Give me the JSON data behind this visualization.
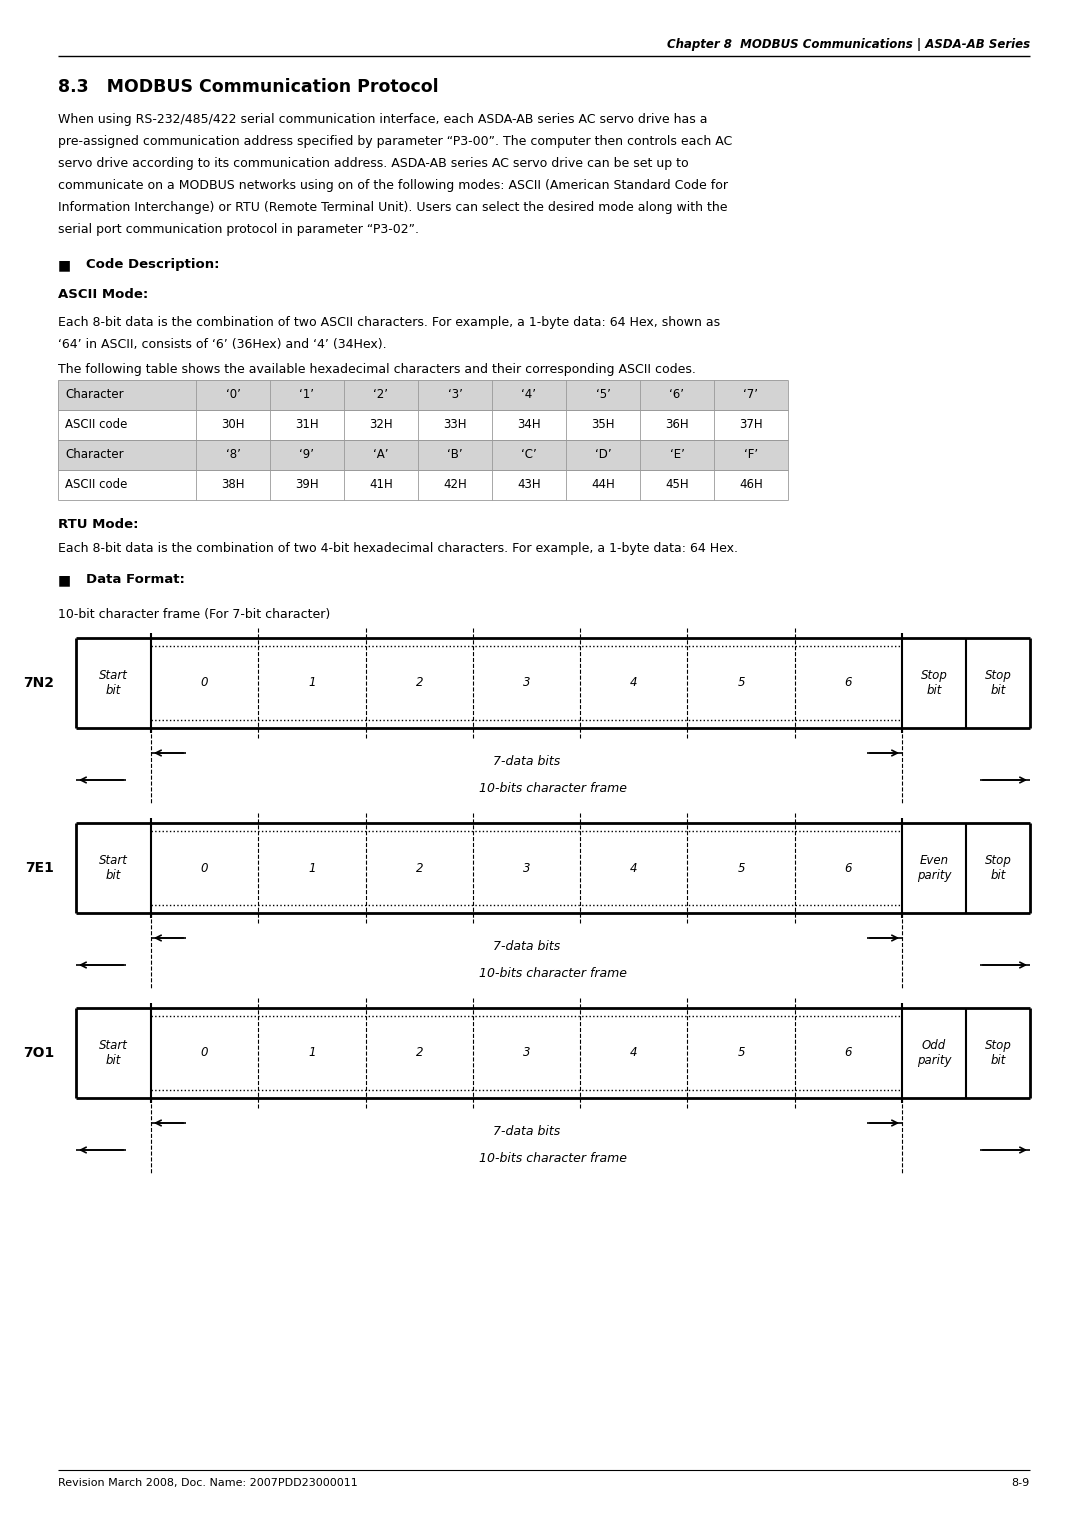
{
  "page_title": "Chapter 8  MODBUS Communications | ASDA-AB Series",
  "section_title": "8.3   MODBUS Communication Protocol",
  "intro_lines": [
    "When using RS-232/485/422 serial communication interface, each ASDA-AB series AC servo drive has a",
    "pre-assigned communication address specified by parameter “P3-00”. The computer then controls each AC",
    "servo drive according to its communication address. ASDA-AB series AC servo drive can be set up to",
    "communicate on a MODBUS networks using on of the following modes: ASCII (American Standard Code for",
    "Information Interchange) or RTU (Remote Terminal Unit). Users can select the desired mode along with the",
    "serial port communication protocol in parameter “P3-02”."
  ],
  "code_desc_header": "Code Description:",
  "ascii_mode_header": "ASCII Mode:",
  "ascii_text1": "Each 8-bit data is the combination of two ASCII characters. For example, a 1-byte data: 64 Hex, shown as",
  "ascii_text2": "‘64’ in ASCII, consists of ‘6’ (36Hex) and ‘4’ (34Hex).",
  "ascii_table_intro": "The following table shows the available hexadecimal characters and their corresponding ASCII codes.",
  "table_row1_label": "Character",
  "table_row1_vals": [
    "‘0’",
    "‘1’",
    "‘2’",
    "‘3’",
    "‘4’",
    "‘5’",
    "‘6’",
    "‘7’"
  ],
  "table_row2_label": "ASCII code",
  "table_row2_vals": [
    "30H",
    "31H",
    "32H",
    "33H",
    "34H",
    "35H",
    "36H",
    "37H"
  ],
  "table_row3_label": "Character",
  "table_row3_vals": [
    "‘8’",
    "‘9’",
    "‘A’",
    "‘B’",
    "‘C’",
    "‘D’",
    "‘E’",
    "‘F’"
  ],
  "table_row4_label": "ASCII code",
  "table_row4_vals": [
    "38H",
    "39H",
    "41H",
    "42H",
    "43H",
    "44H",
    "45H",
    "46H"
  ],
  "rtu_mode_header": "RTU Mode:",
  "rtu_text": "Each 8-bit data is the combination of two 4-bit hexadecimal characters. For example, a 1-byte data: 64 Hex.",
  "data_format_header": "Data Format:",
  "frame_intro": "10-bit character frame (For 7-bit character)",
  "frame_labels_7n2": "7N2",
  "frame_labels_7e1": "7E1",
  "frame_labels_7o1": "7O1",
  "frame_7n2_last": [
    "Stop\nbit",
    "Stop\nbit"
  ],
  "frame_7e1_last": [
    "Even\nparity",
    "Stop\nbit"
  ],
  "frame_7o1_last": [
    "Odd\nparity",
    "Stop\nbit"
  ],
  "data_bits_label": "7-data bits",
  "char_frame_label": "10-bits character frame",
  "footer_left": "Revision March 2008, Doc. Name: 2007PDD23000011",
  "footer_right": "8-9",
  "bg_color": "#ffffff",
  "table_header_bg": "#d3d3d3",
  "table_white_bg": "#ffffff"
}
